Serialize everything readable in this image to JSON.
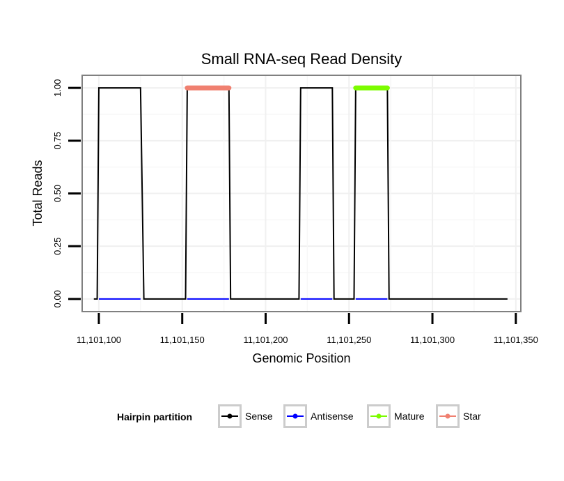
{
  "chart_data": {
    "type": "line",
    "title": "Small RNA-seq Read Density",
    "xlabel": "Genomic Position",
    "ylabel": "Total Reads",
    "xlim": [
      11101090,
      11101353
    ],
    "ylim": [
      -0.06,
      1.06
    ],
    "x_ticks": [
      11101100,
      11101150,
      11101200,
      11101250,
      11101300,
      11101350
    ],
    "x_tick_labels": [
      "11,101,100",
      "11,101,150",
      "11,101,200",
      "11,101,250",
      "11,101,300",
      "11,101,350"
    ],
    "y_ticks": [
      0,
      0.25,
      0.5,
      0.75,
      1.0
    ],
    "y_tick_labels": [
      "0.00",
      "0.25",
      "0.50",
      "0.75",
      "1.00"
    ],
    "grid": true,
    "legend_position": "bottom",
    "legend_title": "Hairpin partition",
    "series": [
      {
        "name": "Sense",
        "color": "#000000",
        "x": [
          11101097,
          11101099,
          11101100,
          11101125,
          11101127,
          11101152,
          11101153,
          11101178,
          11101179,
          11101220,
          11101221,
          11101240,
          11101241,
          11101253,
          11101254,
          11101273,
          11101274,
          11101345
        ],
        "values": [
          0,
          0,
          1,
          1,
          0,
          0,
          1,
          1,
          0,
          0,
          1,
          1,
          0,
          0,
          1,
          1,
          0,
          0
        ]
      },
      {
        "name": "Antisense",
        "color": "#0000ff",
        "x": [
          11101097,
          11101345
        ],
        "values": [
          0,
          0
        ]
      },
      {
        "name": "Mature",
        "color": "#7cfc00",
        "x": [
          11101254,
          11101273
        ],
        "values": [
          1,
          1
        ]
      },
      {
        "name": "Star",
        "color": "#f08070",
        "x": [
          11101153,
          11101178
        ],
        "values": [
          1,
          1
        ]
      }
    ]
  }
}
